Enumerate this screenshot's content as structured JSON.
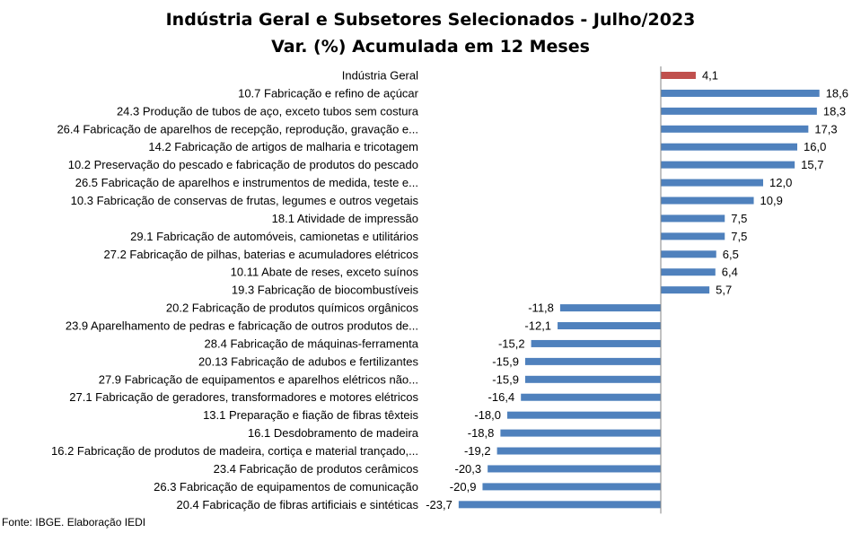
{
  "chart_data": {
    "type": "bar",
    "orientation": "horizontal",
    "title": "Indústria Geral e Subsetores Selecionados - Julho/2023",
    "subtitle": "Var. (%) Acumulada em 12 Meses",
    "xlim": [
      -25,
      21
    ],
    "grid": false,
    "legend": "none",
    "colors": {
      "highlight": "#c0504d",
      "bars": "#4f81bd"
    },
    "categories": [
      "Indústria Geral",
      "10.7 Fabricação e refino de açúcar",
      "24.3 Produção de tubos de aço, exceto tubos sem costura",
      "26.4 Fabricação de aparelhos de recepção, reprodução, gravação e...",
      "14.2 Fabricação de artigos de malharia e tricotagem",
      "10.2 Preservação do pescado e fabricação de produtos do pescado",
      "26.5 Fabricação de aparelhos e instrumentos de medida, teste e...",
      "10.3 Fabricação de conservas de frutas, legumes e outros vegetais",
      "18.1 Atividade de impressão",
      "29.1 Fabricação de automóveis, camionetas e utilitários",
      "27.2 Fabricação de pilhas, baterias e acumuladores elétricos",
      "10.11 Abate de reses, exceto suínos",
      "19.3 Fabricação de biocombustíveis",
      "20.2 Fabricação de produtos químicos orgânicos",
      "23.9 Aparelhamento de pedras e fabricação de outros produtos de...",
      "28.4 Fabricação de máquinas-ferramenta",
      "20.13 Fabricação de adubos e fertilizantes",
      "27.9 Fabricação de equipamentos e aparelhos elétricos não...",
      "27.1 Fabricação de geradores, transformadores e motores elétricos",
      "13.1 Preparação e fiação de fibras têxteis",
      "16.1 Desdobramento de madeira",
      "16.2 Fabricação de produtos de madeira, cortiça e material trançado,...",
      "23.4 Fabricação de produtos cerâmicos",
      "26.3 Fabricação de equipamentos de comunicação",
      "20.4 Fabricação de fibras artificiais e sintéticas"
    ],
    "values": [
      4.1,
      18.6,
      18.3,
      17.3,
      16.0,
      15.7,
      12.0,
      10.9,
      7.5,
      7.5,
      6.5,
      6.4,
      5.7,
      -11.8,
      -12.1,
      -15.2,
      -15.9,
      -15.9,
      -16.4,
      -18.0,
      -18.8,
      -19.2,
      -20.3,
      -20.9,
      -23.7
    ],
    "value_labels": [
      "4,1",
      "18,6",
      "18,3",
      "17,3",
      "16,0",
      "15,7",
      "12,0",
      "10,9",
      "7,5",
      "7,5",
      "6,5",
      "6,4",
      "5,7",
      "-11,8",
      "-12,1",
      "-15,2",
      "-15,9",
      "-15,9",
      "-16,4",
      "-18,0",
      "-18,8",
      "-19,2",
      "-20,3",
      "-20,9",
      "-23,7"
    ]
  },
  "source": "Fonte: IBGE. Elaboração IEDI"
}
